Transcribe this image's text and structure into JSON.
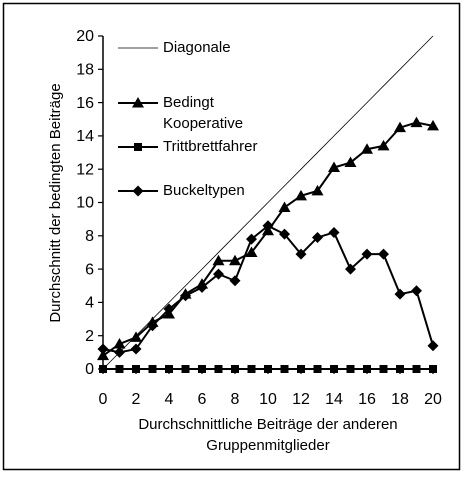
{
  "chart_data": {
    "type": "line",
    "x": [
      0,
      1,
      2,
      3,
      4,
      5,
      6,
      7,
      8,
      9,
      10,
      11,
      12,
      13,
      14,
      15,
      16,
      17,
      18,
      19,
      20
    ],
    "series": [
      {
        "name": "Diagonale",
        "color": "#000000",
        "marker": "none",
        "values": [
          0,
          1,
          2,
          3,
          4,
          5,
          6,
          7,
          8,
          9,
          10,
          11,
          12,
          13,
          14,
          15,
          16,
          17,
          18,
          19,
          20
        ]
      },
      {
        "name": "Bedingt Kooperative",
        "color": "#000000",
        "marker": "triangle",
        "values": [
          0.8,
          1.5,
          1.9,
          2.8,
          3.3,
          4.5,
          5.1,
          6.5,
          6.5,
          7.0,
          8.3,
          9.7,
          10.4,
          10.7,
          12.1,
          12.4,
          13.2,
          13.4,
          14.5,
          14.8,
          14.6
        ]
      },
      {
        "name": "Trittbrettfahrer",
        "color": "#000000",
        "marker": "square",
        "values": [
          0,
          0,
          0,
          0,
          0,
          0,
          0,
          0,
          0,
          0,
          0,
          0,
          0,
          0,
          0,
          0,
          0,
          0,
          0,
          0,
          0
        ]
      },
      {
        "name": "Buckeltypen",
        "color": "#000000",
        "marker": "diamond",
        "values": [
          1.2,
          1.0,
          1.2,
          2.6,
          3.6,
          4.4,
          4.9,
          5.7,
          5.3,
          7.8,
          8.6,
          8.1,
          6.9,
          7.9,
          8.2,
          6.0,
          6.9,
          6.9,
          4.5,
          4.7,
          1.4
        ]
      }
    ],
    "xlabel": "Durchschnittliche Beiträge der anderen Gruppenmitglieder",
    "ylabel": "Durchschnitt der bedingten Beiträge",
    "xlim": [
      0,
      20
    ],
    "ylim": [
      0,
      20
    ],
    "xticks": [
      0,
      2,
      4,
      6,
      8,
      10,
      12,
      14,
      16,
      18,
      20
    ],
    "yticks": [
      0,
      2,
      4,
      6,
      8,
      10,
      12,
      14,
      16,
      18,
      20
    ],
    "grid": false
  }
}
